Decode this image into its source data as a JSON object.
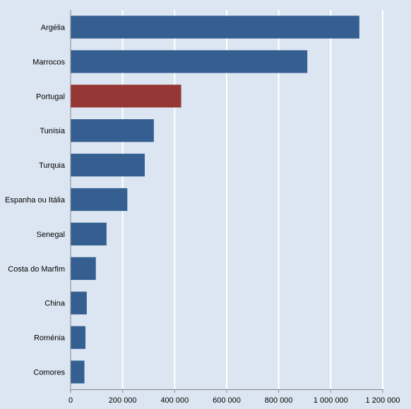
{
  "chart_data": {
    "type": "bar",
    "orientation": "horizontal",
    "categories": [
      "Argélia",
      "Marrocos",
      "Portugal",
      "Tunísia",
      "Turquia",
      "Espanha ou Itália",
      "Senegal",
      "Costa do Marfim",
      "China",
      "Roménia",
      "Comores"
    ],
    "values": [
      1110000,
      910000,
      425000,
      320000,
      285000,
      218000,
      138000,
      97000,
      62000,
      57000,
      53000
    ],
    "highlight": "Portugal",
    "colors": {
      "bar": "#355f91",
      "highlight": "#953735",
      "background": "#dce6f2",
      "grid": "#ffffff"
    },
    "xlim": [
      0,
      1200000
    ],
    "ticks": [
      0,
      200000,
      400000,
      600000,
      800000,
      1000000,
      1200000
    ],
    "tick_labels": [
      "0",
      "200 000",
      "400 000",
      "600 000",
      "800 000",
      "1 000 000",
      "1 200 000"
    ],
    "grid": true,
    "title": "",
    "xlabel": "",
    "ylabel": ""
  }
}
